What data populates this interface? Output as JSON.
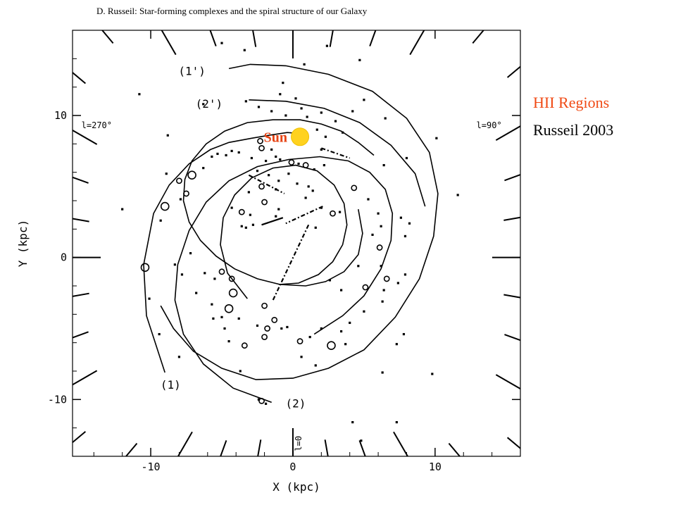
{
  "caption": {
    "line1": "HII Regions",
    "line2": "Russeil 2003"
  },
  "chart_data": {
    "type": "scatter",
    "title": "D. Russeil: Star-forming complexes and the spiral structure of our Galaxy",
    "xlabel": "X (kpc)",
    "ylabel": "Y (kpc)",
    "xlim": [
      -15.5,
      16
    ],
    "ylim": [
      -14,
      16
    ],
    "xticks": [
      -10,
      0,
      10
    ],
    "yticks": [
      -10,
      0,
      10
    ],
    "tick_labels": {
      "x": [
        "-10",
        "0",
        "10"
      ],
      "y": [
        "-10",
        "0",
        "10"
      ]
    },
    "grid": false,
    "sun": {
      "label": "Sun",
      "x": 0.5,
      "y": 8.5,
      "color": "#ffd21f",
      "label_color": "#e64314"
    },
    "longitude_labels": [
      {
        "text": "l=270°",
        "x": -13.8,
        "y": 9.1
      },
      {
        "text": "l=90°",
        "x": 13.8,
        "y": 9.1
      },
      {
        "text": "l=0",
        "x": 0.6,
        "y": -13.1
      }
    ],
    "arm_labels": [
      {
        "text": "(1')",
        "x": -7.1,
        "y": 13.1
      },
      {
        "text": "(2')",
        "x": -5.9,
        "y": 10.8
      },
      {
        "text": "(1)",
        "x": -8.6,
        "y": -9.0
      },
      {
        "text": "(2)",
        "x": 0.2,
        "y": -10.3
      }
    ],
    "arms": [
      {
        "name": "(1)",
        "x": [
          -9.0,
          -10.3,
          -10.5,
          -9.8,
          -8.7,
          -7.3,
          -5.8,
          -4.5,
          -2.9,
          -1.7,
          -0.4,
          0.9
        ],
        "y": [
          -8.1,
          -4.1,
          -0.5,
          3.1,
          5.1,
          6.6,
          7.6,
          8.1,
          8.4,
          8.6,
          8.8,
          8.7
        ]
      },
      {
        "name": "(1')",
        "x": [
          -4.5,
          -3.0,
          -0.5,
          2.5,
          5.6,
          8.0,
          9.6,
          10.2,
          9.9,
          8.9,
          7.2,
          5.0,
          2.5,
          0.0,
          -2.6,
          -5.0,
          -7.0,
          -8.4,
          -9.3
        ],
        "y": [
          13.3,
          13.6,
          13.5,
          12.9,
          11.7,
          9.8,
          7.4,
          4.5,
          1.5,
          -1.5,
          -4.2,
          -6.5,
          -7.8,
          -8.5,
          -8.6,
          -7.8,
          -6.6,
          -5.0,
          -3.4
        ]
      },
      {
        "name": "(2)",
        "x": [
          -1.5,
          -4.2,
          -6.3,
          -7.7,
          -8.3,
          -8.1,
          -7.3,
          -6.1,
          -4.5,
          -2.5,
          -0.3,
          1.9,
          3.9,
          5.4,
          6.5,
          7.0,
          6.9,
          6.2,
          5.0,
          3.5,
          1.5
        ],
        "y": [
          -10.2,
          -9.2,
          -7.5,
          -5.4,
          -3.0,
          -0.5,
          1.9,
          3.9,
          5.4,
          6.4,
          6.9,
          7.1,
          6.8,
          6.0,
          4.8,
          3.1,
          1.2,
          -0.8,
          -2.7,
          -4.1,
          -5.4
        ]
      },
      {
        "name": "(2')",
        "x": [
          -3.1,
          -0.5,
          2.2,
          4.7,
          6.9,
          8.6,
          9.3
        ],
        "y": [
          11.1,
          11.0,
          10.5,
          9.5,
          7.9,
          5.9,
          3.6
        ]
      },
      {
        "name": "inner arm",
        "x": [
          4.6,
          4.9,
          4.6,
          3.6,
          2.3,
          0.9,
          -0.9,
          -2.5,
          -4.1,
          -5.4,
          -6.5,
          -7.3,
          -7.7,
          -7.6,
          -7.1,
          -6.1,
          -4.8,
          -3.2,
          -1.4,
          0.5,
          2.0,
          3.4,
          4.6,
          5.7
        ],
        "y": [
          3.4,
          1.7,
          0.2,
          -1.0,
          -1.7,
          -2.0,
          -1.9,
          -1.5,
          -0.8,
          0.1,
          1.2,
          2.5,
          4.0,
          5.5,
          6.8,
          8.0,
          8.9,
          9.5,
          9.7,
          9.7,
          9.4,
          8.9,
          8.1,
          7.2
        ]
      },
      {
        "name": "innermost arm",
        "x": [
          -3.2,
          -4.6,
          -5.1,
          -4.9,
          -4.1,
          -2.9,
          -1.4,
          0.2,
          1.7,
          2.9,
          3.6,
          3.8,
          3.5,
          2.8,
          1.8,
          0.4,
          -1.0
        ],
        "y": [
          -2.9,
          -1.1,
          0.9,
          2.8,
          4.4,
          5.6,
          6.3,
          6.5,
          6.1,
          5.1,
          3.8,
          2.3,
          0.9,
          -0.3,
          -1.2,
          -1.8,
          -1.9
        ]
      }
    ],
    "points": [
      {
        "x": -10.4,
        "y": -0.7,
        "s": "L"
      },
      {
        "x": -9.0,
        "y": 3.6,
        "s": "L"
      },
      {
        "x": -7.1,
        "y": 5.8,
        "s": "L"
      },
      {
        "x": -8.0,
        "y": 5.4,
        "s": "M"
      },
      {
        "x": -7.5,
        "y": 4.5,
        "s": "M"
      },
      {
        "x": -7.9,
        "y": 4.1,
        "s": "S"
      },
      {
        "x": -9.3,
        "y": 2.6,
        "s": "S"
      },
      {
        "x": -8.9,
        "y": 5.9,
        "s": "S"
      },
      {
        "x": -5.7,
        "y": 7.1,
        "s": "S"
      },
      {
        "x": -6.3,
        "y": 6.3,
        "s": "S"
      },
      {
        "x": -5.3,
        "y": 7.3,
        "s": "S"
      },
      {
        "x": -4.7,
        "y": 7.2,
        "s": "S"
      },
      {
        "x": -4.3,
        "y": 7.5,
        "s": "S"
      },
      {
        "x": -3.8,
        "y": 7.4,
        "s": "S"
      },
      {
        "x": -2.9,
        "y": 7.0,
        "s": "S"
      },
      {
        "x": -2.2,
        "y": 7.7,
        "s": "M"
      },
      {
        "x": -1.5,
        "y": 7.6,
        "s": "S"
      },
      {
        "x": -0.9,
        "y": 6.9,
        "s": "S"
      },
      {
        "x": -0.1,
        "y": 6.7,
        "s": "M"
      },
      {
        "x": 0.4,
        "y": 6.6,
        "s": "S"
      },
      {
        "x": 0.9,
        "y": 6.5,
        "s": "M"
      },
      {
        "x": 1.5,
        "y": 6.2,
        "s": "S"
      },
      {
        "x": 2.2,
        "y": 6.5,
        "s": "S"
      },
      {
        "x": -2.5,
        "y": 6.1,
        "s": "S"
      },
      {
        "x": -1.7,
        "y": 5.8,
        "s": "S"
      },
      {
        "x": -1.0,
        "y": 5.4,
        "s": "S"
      },
      {
        "x": -0.3,
        "y": 5.9,
        "s": "S"
      },
      {
        "x": -2.2,
        "y": 5.0,
        "s": "M"
      },
      {
        "x": -1.2,
        "y": 4.8,
        "s": "S"
      },
      {
        "x": 0.3,
        "y": 5.2,
        "s": "S"
      },
      {
        "x": 1.1,
        "y": 5.0,
        "s": "S"
      },
      {
        "x": -3.1,
        "y": 4.6,
        "s": "S"
      },
      {
        "x": -2.0,
        "y": 3.9,
        "s": "M"
      },
      {
        "x": -1.0,
        "y": 3.4,
        "s": "S"
      },
      {
        "x": -4.3,
        "y": 3.5,
        "s": "S"
      },
      {
        "x": -3.6,
        "y": 3.2,
        "s": "M"
      },
      {
        "x": -3.0,
        "y": 3.0,
        "s": "S"
      },
      {
        "x": 2.0,
        "y": 3.5,
        "s": "S"
      },
      {
        "x": 2.8,
        "y": 3.1,
        "s": "M"
      },
      {
        "x": 3.3,
        "y": 3.2,
        "s": "S"
      },
      {
        "x": 4.3,
        "y": 4.9,
        "s": "M"
      },
      {
        "x": 5.3,
        "y": 4.1,
        "s": "S"
      },
      {
        "x": 6.0,
        "y": 3.1,
        "s": "S"
      },
      {
        "x": 5.6,
        "y": 1.6,
        "s": "S"
      },
      {
        "x": 6.1,
        "y": 0.7,
        "s": "M"
      },
      {
        "x": 6.2,
        "y": -0.6,
        "s": "S"
      },
      {
        "x": 6.6,
        "y": -1.5,
        "s": "M"
      },
      {
        "x": 6.4,
        "y": -2.3,
        "s": "S"
      },
      {
        "x": 6.3,
        "y": -3.1,
        "s": "S"
      },
      {
        "x": 5.0,
        "y": -3.8,
        "s": "S"
      },
      {
        "x": 3.4,
        "y": -2.3,
        "s": "S"
      },
      {
        "x": 2.6,
        "y": -1.6,
        "s": "S"
      },
      {
        "x": 4.6,
        "y": -0.6,
        "s": "S"
      },
      {
        "x": 5.1,
        "y": -2.1,
        "s": "M"
      },
      {
        "x": 6.2,
        "y": 2.2,
        "s": "S"
      },
      {
        "x": 7.9,
        "y": 1.5,
        "s": "S"
      },
      {
        "x": 7.6,
        "y": 2.8,
        "s": "S"
      },
      {
        "x": 8.2,
        "y": 2.4,
        "s": "S"
      },
      {
        "x": 7.4,
        "y": -1.8,
        "s": "S"
      },
      {
        "x": 7.9,
        "y": -1.2,
        "s": "S"
      },
      {
        "x": 6.4,
        "y": 6.5,
        "s": "S"
      },
      {
        "x": 8.0,
        "y": 7.0,
        "s": "S"
      },
      {
        "x": 6.5,
        "y": 9.8,
        "s": "S"
      },
      {
        "x": 5.0,
        "y": 11.1,
        "s": "S"
      },
      {
        "x": 4.2,
        "y": 10.3,
        "s": "S"
      },
      {
        "x": 3.0,
        "y": 9.6,
        "s": "S"
      },
      {
        "x": 2.0,
        "y": 10.2,
        "s": "S"
      },
      {
        "x": 1.0,
        "y": 9.9,
        "s": "S"
      },
      {
        "x": 0.2,
        "y": 11.2,
        "s": "S"
      },
      {
        "x": -0.9,
        "y": 11.5,
        "s": "S"
      },
      {
        "x": -3.3,
        "y": 11.0,
        "s": "S"
      },
      {
        "x": -2.4,
        "y": 10.6,
        "s": "S"
      },
      {
        "x": -1.5,
        "y": 10.3,
        "s": "S"
      },
      {
        "x": -0.5,
        "y": 10.0,
        "s": "S"
      },
      {
        "x": 0.6,
        "y": 10.5,
        "s": "S"
      },
      {
        "x": 1.7,
        "y": 9.0,
        "s": "S"
      },
      {
        "x": 2.3,
        "y": 8.5,
        "s": "S"
      },
      {
        "x": 3.5,
        "y": 8.8,
        "s": "S"
      },
      {
        "x": -0.7,
        "y": 12.3,
        "s": "S"
      },
      {
        "x": 0.8,
        "y": 13.6,
        "s": "S"
      },
      {
        "x": -3.4,
        "y": 14.6,
        "s": "S"
      },
      {
        "x": -5.0,
        "y": 15.1,
        "s": "S"
      },
      {
        "x": 2.4,
        "y": 14.9,
        "s": "S"
      },
      {
        "x": 4.7,
        "y": 13.9,
        "s": "S"
      },
      {
        "x": -10.8,
        "y": 11.5,
        "s": "S"
      },
      {
        "x": -8.8,
        "y": 8.6,
        "s": "S"
      },
      {
        "x": -12.0,
        "y": 3.4,
        "s": "S"
      },
      {
        "x": -8.3,
        "y": -0.5,
        "s": "S"
      },
      {
        "x": -7.8,
        "y": -1.2,
        "s": "S"
      },
      {
        "x": -7.2,
        "y": 0.3,
        "s": "S"
      },
      {
        "x": -10.1,
        "y": -2.9,
        "s": "S"
      },
      {
        "x": -9.4,
        "y": -5.4,
        "s": "S"
      },
      {
        "x": -8.0,
        "y": -7.0,
        "s": "S"
      },
      {
        "x": -6.2,
        "y": -1.1,
        "s": "S"
      },
      {
        "x": -5.5,
        "y": -1.5,
        "s": "S"
      },
      {
        "x": -5.0,
        "y": -1.0,
        "s": "M"
      },
      {
        "x": -4.3,
        "y": -1.5,
        "s": "M"
      },
      {
        "x": -4.2,
        "y": -2.5,
        "s": "L"
      },
      {
        "x": -4.5,
        "y": -3.6,
        "s": "L"
      },
      {
        "x": -3.8,
        "y": -4.3,
        "s": "S"
      },
      {
        "x": -4.5,
        "y": -5.9,
        "s": "S"
      },
      {
        "x": -4.8,
        "y": -5.0,
        "s": "S"
      },
      {
        "x": -3.4,
        "y": -6.2,
        "s": "M"
      },
      {
        "x": -2.5,
        "y": -4.8,
        "s": "S"
      },
      {
        "x": -2.0,
        "y": -5.6,
        "s": "M"
      },
      {
        "x": -1.8,
        "y": -5.0,
        "s": "M"
      },
      {
        "x": -0.8,
        "y": -5.0,
        "s": "S"
      },
      {
        "x": 0.5,
        "y": -5.9,
        "s": "M"
      },
      {
        "x": 1.2,
        "y": -5.6,
        "s": "S"
      },
      {
        "x": 2.0,
        "y": -5.0,
        "s": "S"
      },
      {
        "x": 2.7,
        "y": -6.2,
        "s": "L"
      },
      {
        "x": 3.4,
        "y": -5.2,
        "s": "S"
      },
      {
        "x": 4.0,
        "y": -4.6,
        "s": "S"
      },
      {
        "x": 1.6,
        "y": -7.6,
        "s": "S"
      },
      {
        "x": 0.6,
        "y": -7.0,
        "s": "S"
      },
      {
        "x": -3.7,
        "y": -8.0,
        "s": "S"
      },
      {
        "x": -2.2,
        "y": -10.1,
        "s": "M"
      },
      {
        "x": -1.9,
        "y": -10.3,
        "s": "S"
      },
      {
        "x": 3.7,
        "y": -6.1,
        "s": "S"
      },
      {
        "x": -2.4,
        "y": -10.0,
        "s": "S"
      },
      {
        "x": -2.4,
        "y": -10.0,
        "s": "S"
      },
      {
        "x": -2.0,
        "y": -3.4,
        "s": "M"
      },
      {
        "x": -1.3,
        "y": -4.4,
        "s": "M"
      },
      {
        "x": -0.4,
        "y": -4.9,
        "s": "S"
      },
      {
        "x": -6.8,
        "y": -2.5,
        "s": "S"
      },
      {
        "x": -5.7,
        "y": -3.3,
        "s": "S"
      },
      {
        "x": -5.6,
        "y": -4.3,
        "s": "S"
      },
      {
        "x": -5.0,
        "y": -4.2,
        "s": "S"
      },
      {
        "x": -3.3,
        "y": 2.1,
        "s": "S"
      },
      {
        "x": -1.2,
        "y": 2.9,
        "s": "S"
      },
      {
        "x": -3.6,
        "y": 2.2,
        "s": "S"
      },
      {
        "x": -2.8,
        "y": 2.3,
        "s": "S"
      },
      {
        "x": 1.6,
        "y": 2.1,
        "s": "S"
      },
      {
        "x": 0.9,
        "y": 4.2,
        "s": "S"
      },
      {
        "x": 1.4,
        "y": 4.7,
        "s": "S"
      },
      {
        "x": 6.3,
        "y": -8.1,
        "s": "S"
      },
      {
        "x": 9.8,
        "y": -8.2,
        "s": "S"
      },
      {
        "x": 4.2,
        "y": -11.6,
        "s": "S"
      },
      {
        "x": 7.3,
        "y": -11.6,
        "s": "S"
      },
      {
        "x": 4.8,
        "y": -12.9,
        "s": "S"
      },
      {
        "x": 11.6,
        "y": 4.4,
        "s": "S"
      },
      {
        "x": 10.1,
        "y": 8.4,
        "s": "S"
      },
      {
        "x": 7.3,
        "y": -6.1,
        "s": "S"
      },
      {
        "x": 7.8,
        "y": -5.4,
        "s": "S"
      },
      {
        "x": -6.3,
        "y": 10.8,
        "s": "S"
      },
      {
        "x": -2.3,
        "y": 8.2,
        "s": "M"
      },
      {
        "x": -1.2,
        "y": 7.1,
        "s": "S"
      },
      {
        "x": -1.9,
        "y": 6.8,
        "s": "S"
      },
      {
        "x": 0.8,
        "y": 8.9,
        "s": "S"
      },
      {
        "x": 2.0,
        "y": 7.6,
        "s": "S"
      }
    ],
    "segments": [
      {
        "x": [
          1.1,
          -1.4
        ],
        "y": [
          2.3,
          -3.0
        ],
        "style": "dashdot"
      },
      {
        "x": [
          2.1,
          -0.5
        ],
        "y": [
          3.6,
          2.4
        ],
        "style": "dashdot"
      },
      {
        "x": [
          -3.1,
          -0.6
        ],
        "y": [
          5.8,
          4.5
        ],
        "style": "dashdot"
      },
      {
        "x": [
          -2.2,
          -0.7
        ],
        "y": [
          2.3,
          2.8
        ],
        "style": "solid"
      },
      {
        "x": [
          2.0,
          4.0
        ],
        "y": [
          7.7,
          7.0
        ],
        "style": "dashdot"
      }
    ]
  }
}
